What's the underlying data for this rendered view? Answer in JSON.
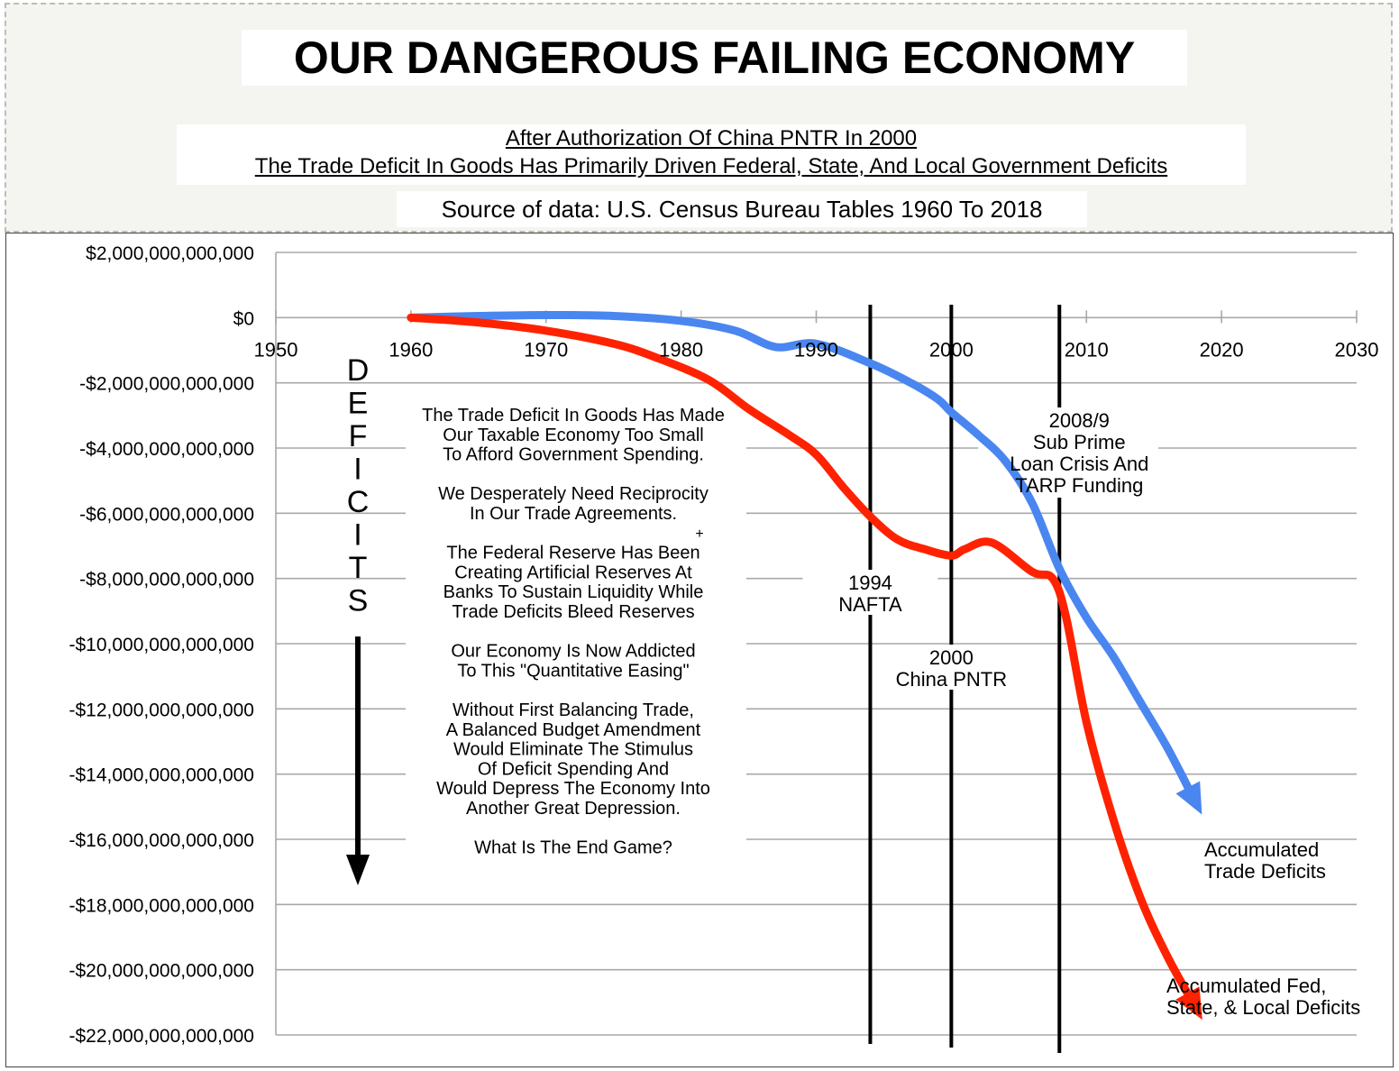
{
  "header": {
    "title": "OUR DANGEROUS FAILING ECONOMY",
    "subtitle_line1": "After Authorization Of China PNTR In 2000",
    "subtitle_line2": "The Trade Deficit In Goods Has Primarily Driven Federal, State, And Local Government Deficits",
    "source": "Source of data:  U.S. Census Bureau Tables 1960 To 2018"
  },
  "chart_data": {
    "type": "line",
    "title": "OUR DANGEROUS FAILING ECONOMY",
    "xlim": [
      1950,
      2030
    ],
    "ylim": [
      -22000000000000,
      2000000000000
    ],
    "x_ticks": [
      1950,
      1960,
      1970,
      1980,
      1990,
      2000,
      2010,
      2020,
      2030
    ],
    "x_tick_labels": [
      "1950",
      "1960",
      "1970",
      "1980",
      "1990",
      "2000",
      "2010",
      "2020",
      "2030"
    ],
    "y_ticks": [
      2000000000000.0,
      0,
      -2000000000000.0,
      -4000000000000.0,
      -6000000000000.0,
      -8000000000000.0,
      -10000000000000.0,
      -12000000000000.0,
      -14000000000000.0,
      -16000000000000.0,
      -18000000000000.0,
      -20000000000000.0,
      -22000000000000.0
    ],
    "y_tick_labels": [
      "$2,000,000,000,000",
      "$0",
      "-$2,000,000,000,000",
      "-$4,000,000,000,000",
      "-$6,000,000,000,000",
      "-$8,000,000,000,000",
      "-$10,000,000,000,000",
      "-$12,000,000,000,000",
      "-$14,000,000,000,000",
      "-$16,000,000,000,000",
      "-$18,000,000,000,000",
      "-$20,000,000,000,000",
      "-$22,000,000,000,000"
    ],
    "grid": "horizontal",
    "series": [
      {
        "name": "Accumulated Trade Deficits",
        "color": "#4a86f0",
        "x": [
          1960,
          1965,
          1970,
          1975,
          1980,
          1984,
          1987,
          1990,
          1994,
          1997,
          1999,
          2000,
          2002,
          2004,
          2006,
          2008,
          2010,
          2012,
          2014,
          2016,
          2018
        ],
        "y": [
          0,
          50000000000.0,
          80000000000.0,
          50000000000.0,
          -100000000000.0,
          -400000000000.0,
          -900000000000.0,
          -800000000000.0,
          -1400000000000.0,
          -2000000000000.0,
          -2500000000000.0,
          -2900000000000.0,
          -3600000000000.0,
          -4400000000000.0,
          -5700000000000.0,
          -7700000000000.0,
          -9200000000000.0,
          -10400000000000.0,
          -11800000000000.0,
          -13200000000000.0,
          -14800000000000.0
        ]
      },
      {
        "name": "Accumulated Fed, State, & Local Deficits",
        "color": "#ff2200",
        "x": [
          1960,
          1965,
          1970,
          1975,
          1978,
          1982,
          1985,
          1988,
          1990,
          1992,
          1994,
          1996,
          1998,
          2000,
          2001,
          2003,
          2006,
          2007.5,
          2008.5,
          2010,
          2012,
          2014,
          2016,
          2018
        ],
        "y": [
          0,
          -150000000000.0,
          -400000000000.0,
          -800000000000.0,
          -1200000000000.0,
          -1900000000000.0,
          -2800000000000.0,
          -3600000000000.0,
          -4200000000000.0,
          -5200000000000.0,
          -6100000000000.0,
          -6800000000000.0,
          -7100000000000.0,
          -7300000000000.0,
          -7100000000000.0,
          -6900000000000.0,
          -7800000000000.0,
          -8000000000000.0,
          -9200000000000.0,
          -12400000000000.0,
          -15400000000000.0,
          -17800000000000.0,
          -19600000000000.0,
          -21100000000000.0
        ]
      }
    ],
    "vertical_markers": [
      {
        "x": 1994,
        "label_line1": "1994",
        "label_line2": "NAFTA"
      },
      {
        "x": 2000,
        "label_line1": "2000",
        "label_line2": "China PNTR"
      },
      {
        "x": 2008,
        "label_line1": "2008/9",
        "label_line2": "Sub Prime",
        "label_line3": "Loan Crisis And",
        "label_line4": "TARP Funding"
      }
    ],
    "annotations": {
      "deficits_letters": [
        "D",
        "E",
        "F",
        "I",
        "C",
        "I",
        "T",
        "S"
      ],
      "commentary": [
        "The Trade Deficit In Goods Has Made",
        "Our Taxable Economy Too Small",
        "To Afford Government Spending.",
        "",
        "We Desperately Need Reciprocity",
        "In Our Trade Agreements.",
        "",
        "The Federal Reserve Has Been",
        "Creating Artificial Reserves At",
        "Banks To Sustain Liquidity While",
        "Trade Deficits Bleed Reserves",
        "",
        "Our Economy Is Now Addicted",
        "To This \"Quantitative Easing\"",
        "",
        "Without First Balancing Trade,",
        "A Balanced Budget Amendment",
        "Would Eliminate The Stimulus",
        "Of Deficit Spending And",
        "Would Depress The Economy Into",
        "Another Great Depression.",
        "",
        "What Is The End Game?"
      ],
      "trade_label": [
        "Accumulated",
        "Trade Deficits"
      ],
      "gov_label": [
        "Accumulated Fed,",
        "State, & Local Deficits"
      ]
    }
  }
}
